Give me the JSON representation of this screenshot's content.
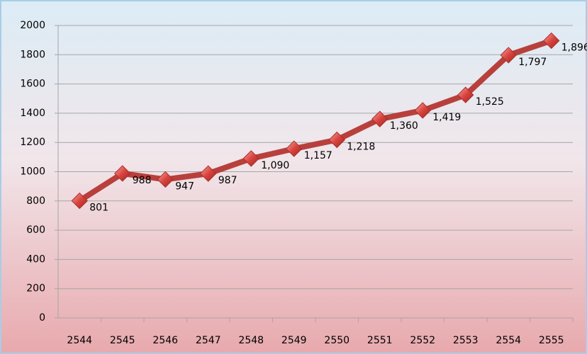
{
  "chart_data": {
    "type": "line",
    "categories": [
      "2544",
      "2545",
      "2546",
      "2547",
      "2548",
      "2549",
      "2550",
      "2551",
      "2552",
      "2553",
      "2554",
      "2555"
    ],
    "series": [
      {
        "color": "#b8403c",
        "values": [
          801,
          988,
          947,
          987,
          1090,
          1157,
          1218,
          1360,
          1419,
          1525,
          1797,
          1896
        ],
        "value_labels": [
          "801",
          "988",
          "947",
          "987",
          "1,090",
          "1,157",
          "1,218",
          "1,360",
          "1,419",
          "1,525",
          "1,797",
          "1,896"
        ]
      }
    ],
    "ylim": [
      0,
      2000
    ],
    "yticks": [
      0,
      200,
      400,
      600,
      800,
      1000,
      1200,
      1400,
      1600,
      1800,
      2000
    ],
    "grid": true
  }
}
